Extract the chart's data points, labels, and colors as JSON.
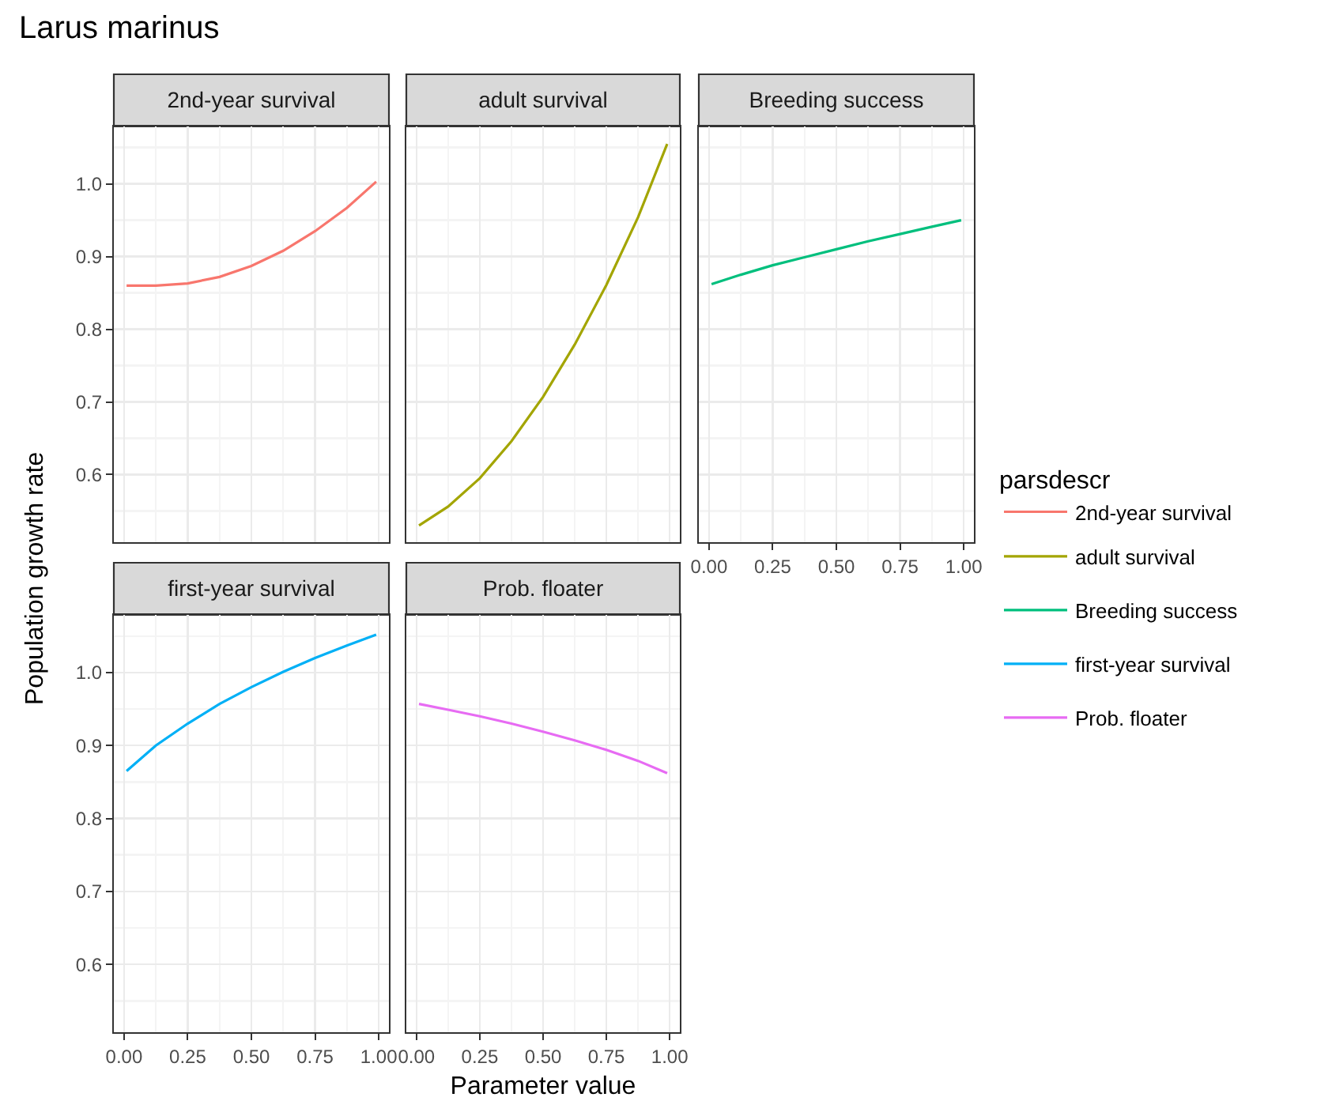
{
  "chart_data": [
    {
      "type": "line",
      "title": "2nd-year survival",
      "annotations": [
        "Larus marinus"
      ],
      "ylabel": "Population growth rate",
      "legend_title": "parsdescr",
      "legend": "right",
      "grid": true,
      "tick_labels": "y",
      "xlim": [
        -0.04,
        1.04
      ],
      "xticks": [
        0,
        0.25,
        0.5,
        0.75,
        1
      ],
      "ylim": [
        0.507,
        1.079
      ],
      "yticks": [
        0.6,
        0.7,
        0.8,
        0.9,
        {
          "value": 1,
          "label": "1.0"
        }
      ],
      "x": [
        0.01,
        0.125,
        0.25,
        0.375,
        0.5,
        0.625,
        0.75,
        0.875,
        0.99
      ],
      "series": [
        {
          "name": "2nd-year survival",
          "color": "#f8766d",
          "values": [
            0.86,
            0.86,
            0.863,
            0.872,
            0.887,
            0.908,
            0.935,
            0.967,
            1.003
          ]
        }
      ]
    },
    {
      "type": "line",
      "title": "adult survival",
      "legend": "right",
      "grid": true,
      "tick_labels": false,
      "xlim": [
        -0.04,
        1.04
      ],
      "xticks": [
        0,
        0.25,
        0.5,
        0.75,
        1
      ],
      "ylim": [
        0.507,
        1.079
      ],
      "yticks": [
        0.6,
        0.7,
        0.8,
        0.9,
        1
      ],
      "x": [
        0.01,
        0.125,
        0.25,
        0.375,
        0.5,
        0.625,
        0.75,
        0.875,
        0.99
      ],
      "series": [
        {
          "name": "adult survival",
          "color": "#a3a500",
          "values": [
            0.53,
            0.556,
            0.595,
            0.646,
            0.707,
            0.779,
            0.861,
            0.954,
            1.055
          ]
        }
      ]
    },
    {
      "type": "line",
      "title": "Breeding success",
      "legend": "right",
      "grid": true,
      "tick_labels": "x",
      "xlim": [
        -0.04,
        1.04
      ],
      "xticks": [
        {
          "value": 0,
          "label": "0.00"
        },
        0.25,
        {
          "value": 0.5,
          "label": "0.50"
        },
        0.75,
        {
          "value": 1,
          "label": "1.00"
        }
      ],
      "ylim": [
        0.507,
        1.079
      ],
      "yticks": [
        0.6,
        0.7,
        0.8,
        0.9,
        1
      ],
      "x": [
        0.01,
        0.125,
        0.25,
        0.375,
        0.5,
        0.625,
        0.75,
        0.875,
        0.99
      ],
      "series": [
        {
          "name": "Breeding success",
          "color": "#00bf7d",
          "values": [
            0.862,
            0.875,
            0.888,
            0.899,
            0.91,
            0.921,
            0.931,
            0.941,
            0.95
          ]
        }
      ]
    },
    {
      "type": "line",
      "title": "first-year survival",
      "legend": "right",
      "grid": true,
      "xlim": [
        -0.04,
        1.04
      ],
      "xticks": [
        {
          "value": 0,
          "label": "0.00"
        },
        0.25,
        {
          "value": 0.5,
          "label": "0.50"
        },
        0.75,
        {
          "value": 1,
          "label": "1.00"
        }
      ],
      "ylim": [
        0.507,
        1.079
      ],
      "yticks": [
        0.6,
        0.7,
        0.8,
        0.9,
        {
          "value": 1,
          "label": "1.0"
        }
      ],
      "x": [
        0.01,
        0.125,
        0.25,
        0.375,
        0.5,
        0.625,
        0.75,
        0.875,
        0.99
      ],
      "series": [
        {
          "name": "first-year survival",
          "color": "#00b0f6",
          "values": [
            0.865,
            0.9,
            0.93,
            0.957,
            0.98,
            1.001,
            1.02,
            1.037,
            1.052
          ]
        }
      ]
    },
    {
      "type": "line",
      "title": "Prob. floater",
      "xlabel": "Parameter value",
      "legend": "right",
      "grid": true,
      "tick_labels": "x",
      "xlim": [
        -0.04,
        1.04
      ],
      "xticks": [
        {
          "value": 0,
          "label": "0.00"
        },
        0.25,
        {
          "value": 0.5,
          "label": "0.50"
        },
        0.75,
        {
          "value": 1,
          "label": "1.00"
        }
      ],
      "ylim": [
        0.507,
        1.079
      ],
      "yticks": [
        0.6,
        0.7,
        0.8,
        0.9,
        1
      ],
      "x": [
        0.01,
        0.125,
        0.25,
        0.375,
        0.5,
        0.625,
        0.75,
        0.875,
        0.99
      ],
      "series": [
        {
          "name": "Prob. floater",
          "color": "#e76bf3",
          "values": [
            0.957,
            0.949,
            0.94,
            0.93,
            0.919,
            0.907,
            0.894,
            0.879,
            0.862
          ]
        }
      ]
    }
  ]
}
